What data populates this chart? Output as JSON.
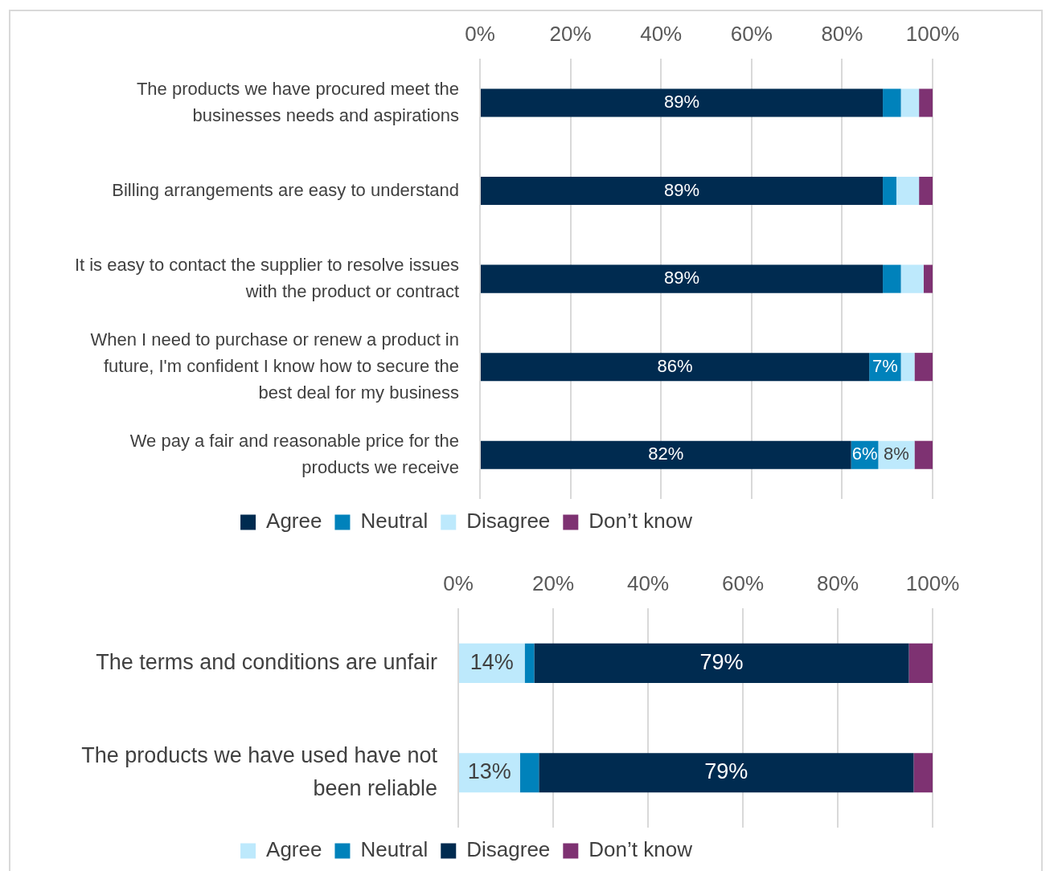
{
  "chart_data": [
    {
      "type": "bar",
      "orientation": "horizontal",
      "stacked": true,
      "categories": [
        "The products we have procured meet the businesses needs and aspirations",
        "Billing arrangements are easy to understand",
        "It is easy to contact the supplier to resolve issues with the product or contract",
        "When I need to purchase or renew a product in future, I'm confident I know how to secure the best deal for my business",
        "We pay a fair and reasonable price for the products we receive"
      ],
      "series": [
        {
          "name": "Agree",
          "color": "#002b50",
          "values": [
            89,
            89,
            89,
            86,
            82
          ],
          "value_labels": [
            "89%",
            "89%",
            "89%",
            "86%",
            "82%"
          ]
        },
        {
          "name": "Neutral",
          "color": "#0082bb",
          "values": [
            4,
            3,
            4,
            7,
            6
          ],
          "value_labels": [
            null,
            null,
            null,
            "7%",
            "6%"
          ]
        },
        {
          "name": "Disagree",
          "color": "#bde9fc",
          "values": [
            4,
            5,
            5,
            3,
            8
          ],
          "value_labels": [
            null,
            null,
            null,
            null,
            "8%"
          ]
        },
        {
          "name": "Don’t know",
          "color": "#7e3272",
          "values": [
            3,
            3,
            2,
            4,
            4
          ]
        }
      ],
      "xlim": [
        0,
        100
      ],
      "xticks": [
        {
          "value": 0,
          "label": "0%"
        },
        {
          "value": 20,
          "label": "20%"
        },
        {
          "value": 40,
          "label": "40%"
        },
        {
          "value": 60,
          "label": "60%"
        },
        {
          "value": 80,
          "label": "80%"
        },
        {
          "value": 100,
          "label": "100%"
        }
      ],
      "grid": "x",
      "legend": "bottom"
    },
    {
      "type": "bar",
      "orientation": "horizontal",
      "stacked": true,
      "categories": [
        "The terms and conditions are unfair",
        "The products we have used have not been reliable"
      ],
      "series": [
        {
          "name": "Agree",
          "color": "#bde9fc",
          "values": [
            14,
            13
          ],
          "value_labels": [
            "14%",
            "13%"
          ]
        },
        {
          "name": "Neutral",
          "color": "#0082bb",
          "values": [
            2,
            4
          ]
        },
        {
          "name": "Disagree",
          "color": "#002b50",
          "values": [
            79,
            79
          ],
          "value_labels": [
            "79%",
            "79%"
          ]
        },
        {
          "name": "Don’t know",
          "color": "#7e3272",
          "values": [
            5,
            4
          ]
        }
      ],
      "xlim": [
        0,
        100
      ],
      "xticks": [
        {
          "value": 0,
          "label": "0%"
        },
        {
          "value": 20,
          "label": "20%"
        },
        {
          "value": 40,
          "label": "40%"
        },
        {
          "value": 60,
          "label": "60%"
        },
        {
          "value": 80,
          "label": "80%"
        },
        {
          "value": 100,
          "label": "100%"
        }
      ],
      "grid": "x",
      "legend": "bottom"
    }
  ]
}
